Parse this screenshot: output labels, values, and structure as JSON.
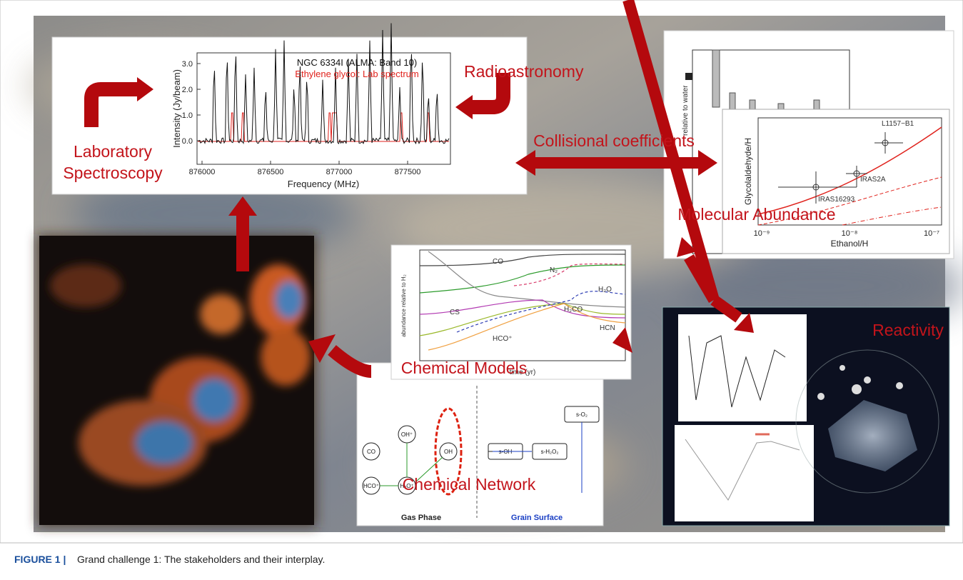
{
  "spectrum": {
    "source": "NGC 6334I (ALMA: Band 10)",
    "lab": "Ethylene glycol: Lab spectrum",
    "y_label": "Intensity (Jy/beam)",
    "x_label": "Frequency (MHz)",
    "x_ticks": [
      "876000",
      "876500",
      "877000",
      "877500"
    ],
    "y_ticks": [
      "0.0",
      "1.0",
      "2.0",
      "3.0"
    ]
  },
  "labels": {
    "radioastronomy": "Radioastronomy",
    "lab_spec": [
      "Laboratory",
      "Spectroscopy"
    ],
    "collisional": "Collisional coefficients",
    "abundance": "Molecular Abundance",
    "reactivity": "Reactivity",
    "models": "Chemical Models",
    "network": "Chemical Network"
  },
  "abundance_plot": {
    "y_label": "Glycolaldehyde/H",
    "x_label": "Ethanol/H",
    "x_ticks": [
      "10⁻⁹",
      "10⁻⁸",
      "10⁻⁷"
    ],
    "sources": [
      "L1157−B1",
      "IRAS2A",
      "IRAS16293"
    ],
    "top_y_label": "relative to water"
  },
  "models_plot": {
    "x_label": "time (yr)",
    "y_label": "abundance relative to H₂",
    "species": [
      "CO",
      "N₂",
      "H₂O",
      "CS",
      "H₂CO",
      "HCO⁺",
      "HCN"
    ]
  },
  "network": {
    "gas": "Gas Phase",
    "grain": "Grain Surface",
    "nodes": [
      "CO",
      "HCO⁺",
      "H₂O⁺",
      "OH⁺",
      "OH",
      "s-OH",
      "s-H₂O₂",
      "s-O₂"
    ]
  },
  "caption": {
    "label": "FIGURE 1 |",
    "text": "Grand challenge 1: The stakeholders and their interplay."
  }
}
